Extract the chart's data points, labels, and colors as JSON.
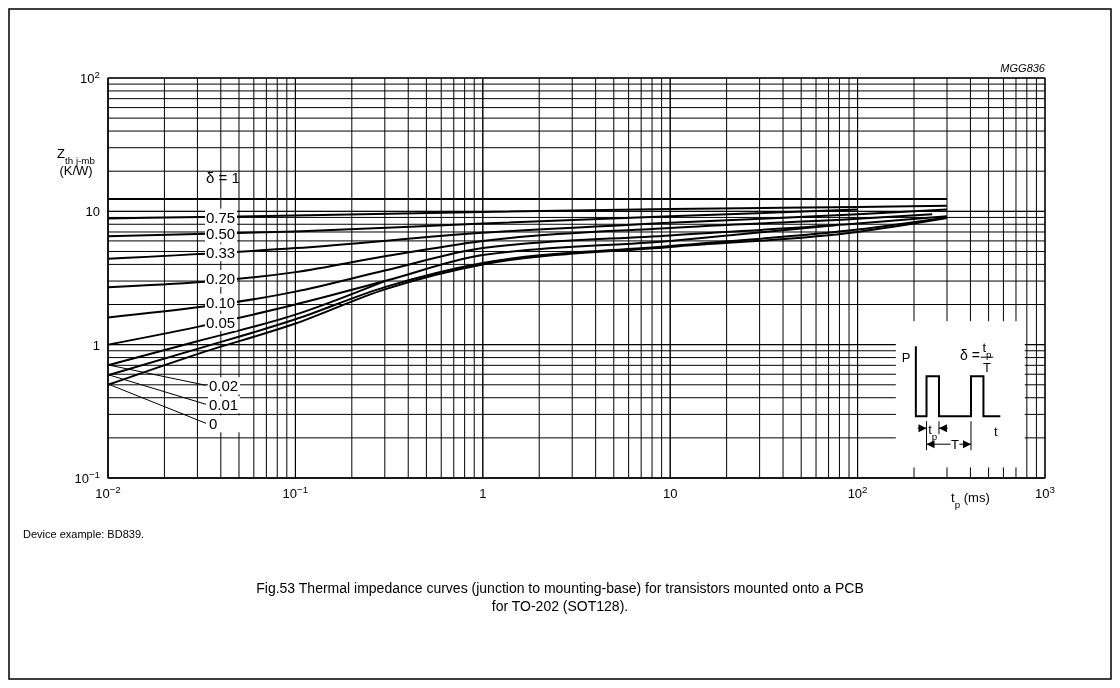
{
  "chart_data": {
    "type": "line",
    "title": "Fig.53  Thermal impedance curves (junction to mounting-base) for transistors mounted onto a PCB for TO-202 (SOT128).",
    "xlabel": "t$_{p}$ (ms)",
    "ylabel": "Z$_{th j-mb}$\n(K/W)",
    "annotations": [
      "MGG836",
      "Device example: BD839.",
      "P",
      "δ = ",
      "t$_{p}$",
      "T",
      "t$_{p}$",
      "T",
      "t"
    ],
    "log": "xy",
    "grid": true,
    "legend": false,
    "xlim": [
      0.01,
      1000
    ],
    "ylim": [
      0.1,
      100
    ],
    "xticks": [
      {
        "value": 0.01,
        "label": "10$^{−2}$"
      },
      {
        "value": 0.1,
        "label": "10$^{−1}$"
      },
      1,
      10,
      {
        "value": 100,
        "label": "10$^{2}$"
      },
      {
        "value": 1000,
        "label": "10$^{3}$"
      }
    ],
    "yticks": [
      {
        "value": 0.1,
        "label": "10$^{−1}$"
      },
      1,
      10,
      {
        "value": 100,
        "label": "10$^{2}$"
      }
    ],
    "series": [
      {
        "name": "δ = 1",
        "color": "#000000",
        "x": [
          0.01,
          300
        ],
        "values": [
          12.4,
          12.4
        ]
      },
      {
        "name": "0.75",
        "color": "#000000",
        "x": [
          0.01,
          0.1,
          1,
          10,
          100,
          300
        ],
        "values": [
          8.85,
          9.3,
          9.9,
          10.4,
          10.8,
          11.0
        ]
      },
      {
        "name": "0.50",
        "color": "#000000",
        "x": [
          0.01,
          0.1,
          1,
          10,
          100
        ],
        "values": [
          6.5,
          7.05,
          8.1,
          9.2,
          10.3
        ]
      },
      {
        "name": "0.33",
        "color": "#000000",
        "x": [
          0.01,
          0.1,
          1,
          10,
          100,
          300
        ],
        "values": [
          4.4,
          5.3,
          6.9,
          8.2,
          9.5,
          10.3
        ]
      },
      {
        "name": "0.20",
        "color": "#000000",
        "x": [
          0.01,
          0.1,
          0.3,
          1,
          10,
          100,
          250
        ],
        "values": [
          2.7,
          3.5,
          4.6,
          6.0,
          7.5,
          8.8,
          9.5
        ]
      },
      {
        "name": "0.10",
        "color": "#000000",
        "x": [
          0.01,
          0.1,
          0.3,
          1,
          10,
          100,
          300
        ],
        "values": [
          1.6,
          2.5,
          3.6,
          5.3,
          6.6,
          8.1,
          9.2
        ]
      },
      {
        "name": "0.05",
        "color": "#000000",
        "x": [
          0.01,
          0.03,
          0.1,
          0.3,
          1,
          10,
          78
        ],
        "values": [
          1.0,
          1.36,
          2.0,
          3.0,
          4.7,
          6.0,
          7.9
        ]
      },
      {
        "name": "0.02",
        "color": "#000000",
        "x": [
          0.01,
          0.03,
          0.1,
          0.3
        ],
        "values": [
          0.7,
          1.06,
          1.68,
          3.0
        ]
      },
      {
        "name": "0.01",
        "color": "#000000",
        "x": [
          0.01,
          0.03,
          0.1,
          0.3,
          1,
          10,
          100,
          300
        ],
        "values": [
          0.59,
          0.93,
          1.55,
          2.7,
          4.1,
          5.5,
          7.3,
          9.0
        ]
      },
      {
        "name": "0",
        "color": "#000000",
        "x": [
          0.01,
          0.03,
          0.1,
          0.3,
          1,
          10,
          100,
          300
        ],
        "values": [
          0.5,
          0.85,
          1.44,
          2.6,
          4.0,
          5.4,
          7.0,
          8.9
        ]
      }
    ]
  }
}
